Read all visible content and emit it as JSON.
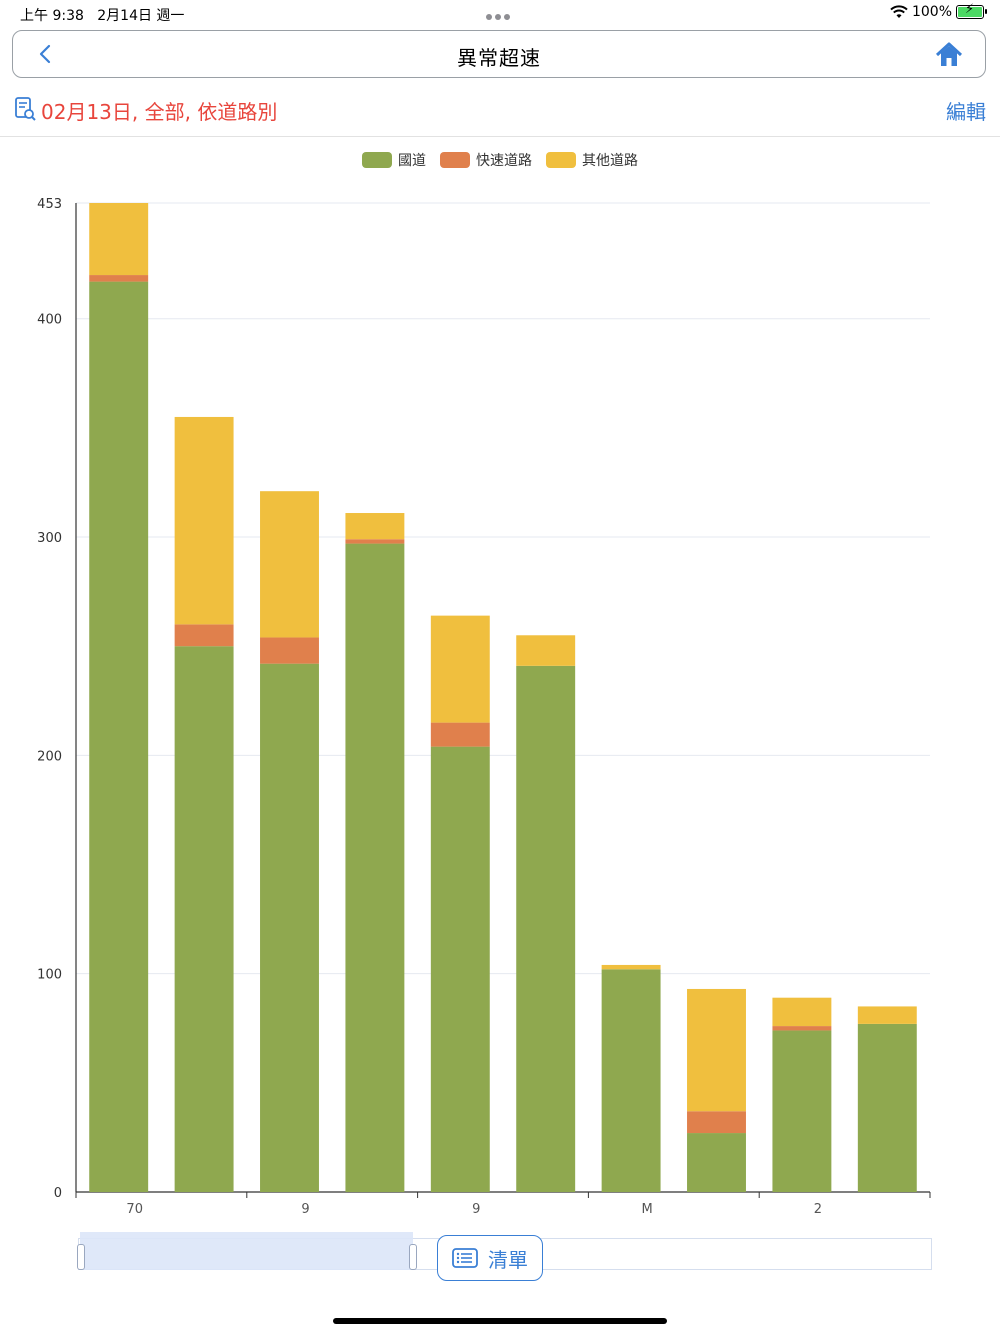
{
  "status_bar": {
    "time": "上午 9:38",
    "date": "2月14日 週一",
    "battery": "100%"
  },
  "nav": {
    "title": "異常超速"
  },
  "filter": {
    "summary": "02月13日, 全部, 依道路別",
    "edit_label": "編輯"
  },
  "list_button": {
    "label": "清單"
  },
  "colors": {
    "national": "#8fa84f",
    "expressway": "#e0804c",
    "other": "#f0bf3e",
    "accent": "#3a7fd5",
    "filter_text": "#e8453c"
  },
  "chart_data": {
    "type": "bar",
    "stacked": true,
    "categories": [
      "",
      "",
      "",
      "",
      "",
      "",
      "",
      "",
      "",
      ""
    ],
    "x_tick_labels": [
      "70",
      "9",
      "9",
      "M",
      "2"
    ],
    "series": [
      {
        "name": "國道",
        "color": "#8fa84f",
        "values": [
          417,
          250,
          242,
          297,
          204,
          241,
          102,
          27,
          74,
          77
        ]
      },
      {
        "name": "快速道路",
        "color": "#e0804c",
        "values": [
          3,
          10,
          12,
          2,
          11,
          0,
          0,
          10,
          2,
          0
        ]
      },
      {
        "name": "其他道路",
        "color": "#f0bf3e",
        "values": [
          33,
          95,
          67,
          12,
          49,
          14,
          2,
          56,
          13,
          8
        ]
      }
    ],
    "y_ticks": [
      0,
      100,
      200,
      300,
      400,
      453
    ],
    "ylim": [
      0,
      453
    ],
    "grid": true,
    "legend": "top-center"
  }
}
